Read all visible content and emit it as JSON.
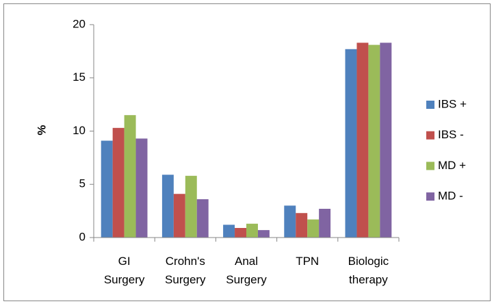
{
  "chart_data": {
    "type": "bar",
    "y_label": "%",
    "categories": [
      "GI Surgery",
      "Crohn's Surgery",
      "Anal Surgery",
      "TPN",
      "Biologic therapy"
    ],
    "series": [
      {
        "name": "IBS +",
        "color": "#4f81bd",
        "values": [
          9.1,
          5.9,
          1.2,
          3.0,
          17.7
        ]
      },
      {
        "name": "IBS -",
        "color": "#c0504d",
        "values": [
          10.3,
          4.1,
          0.9,
          2.3,
          18.3
        ]
      },
      {
        "name": "MD +",
        "color": "#9bbb59",
        "values": [
          11.5,
          5.8,
          1.3,
          1.7,
          18.1
        ]
      },
      {
        "name": "MD -",
        "color": "#8064a2",
        "values": [
          9.3,
          3.6,
          0.7,
          2.7,
          18.3
        ]
      }
    ],
    "ylim": [
      0,
      20
    ],
    "yticks": [
      0,
      5,
      10,
      15,
      20
    ],
    "grid": false,
    "legend": "right"
  }
}
